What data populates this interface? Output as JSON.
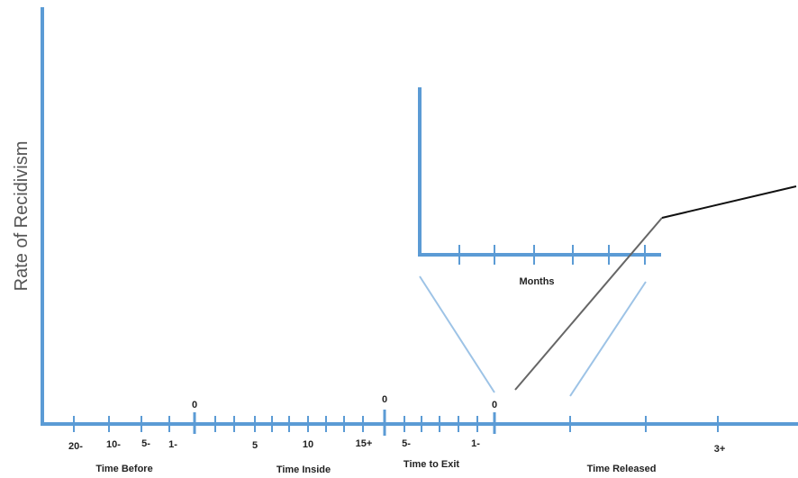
{
  "y_axis_label": "Rate of Recidivism",
  "main_axis": {
    "zero_labels": [
      "0",
      "0",
      "0"
    ],
    "tick_labels": {
      "before_20": "20-",
      "before_10": "10-",
      "before_5": "5-",
      "before_1": "1-",
      "inside_5": "5",
      "inside_10": "10",
      "inside_15": "15+",
      "exit_5": "5-",
      "exit_1": "1-",
      "released_3": "3+"
    },
    "sections": {
      "before": "Time Before",
      "inside": "Time Inside",
      "exit": "Time to Exit",
      "released": "Time Released"
    }
  },
  "inset": {
    "x_label": "Months"
  },
  "colors": {
    "axis": "#5b9bd5",
    "zoom_lines": "#9dc3e6",
    "curve_rise": "#666666",
    "curve_plateau": "#111111"
  }
}
